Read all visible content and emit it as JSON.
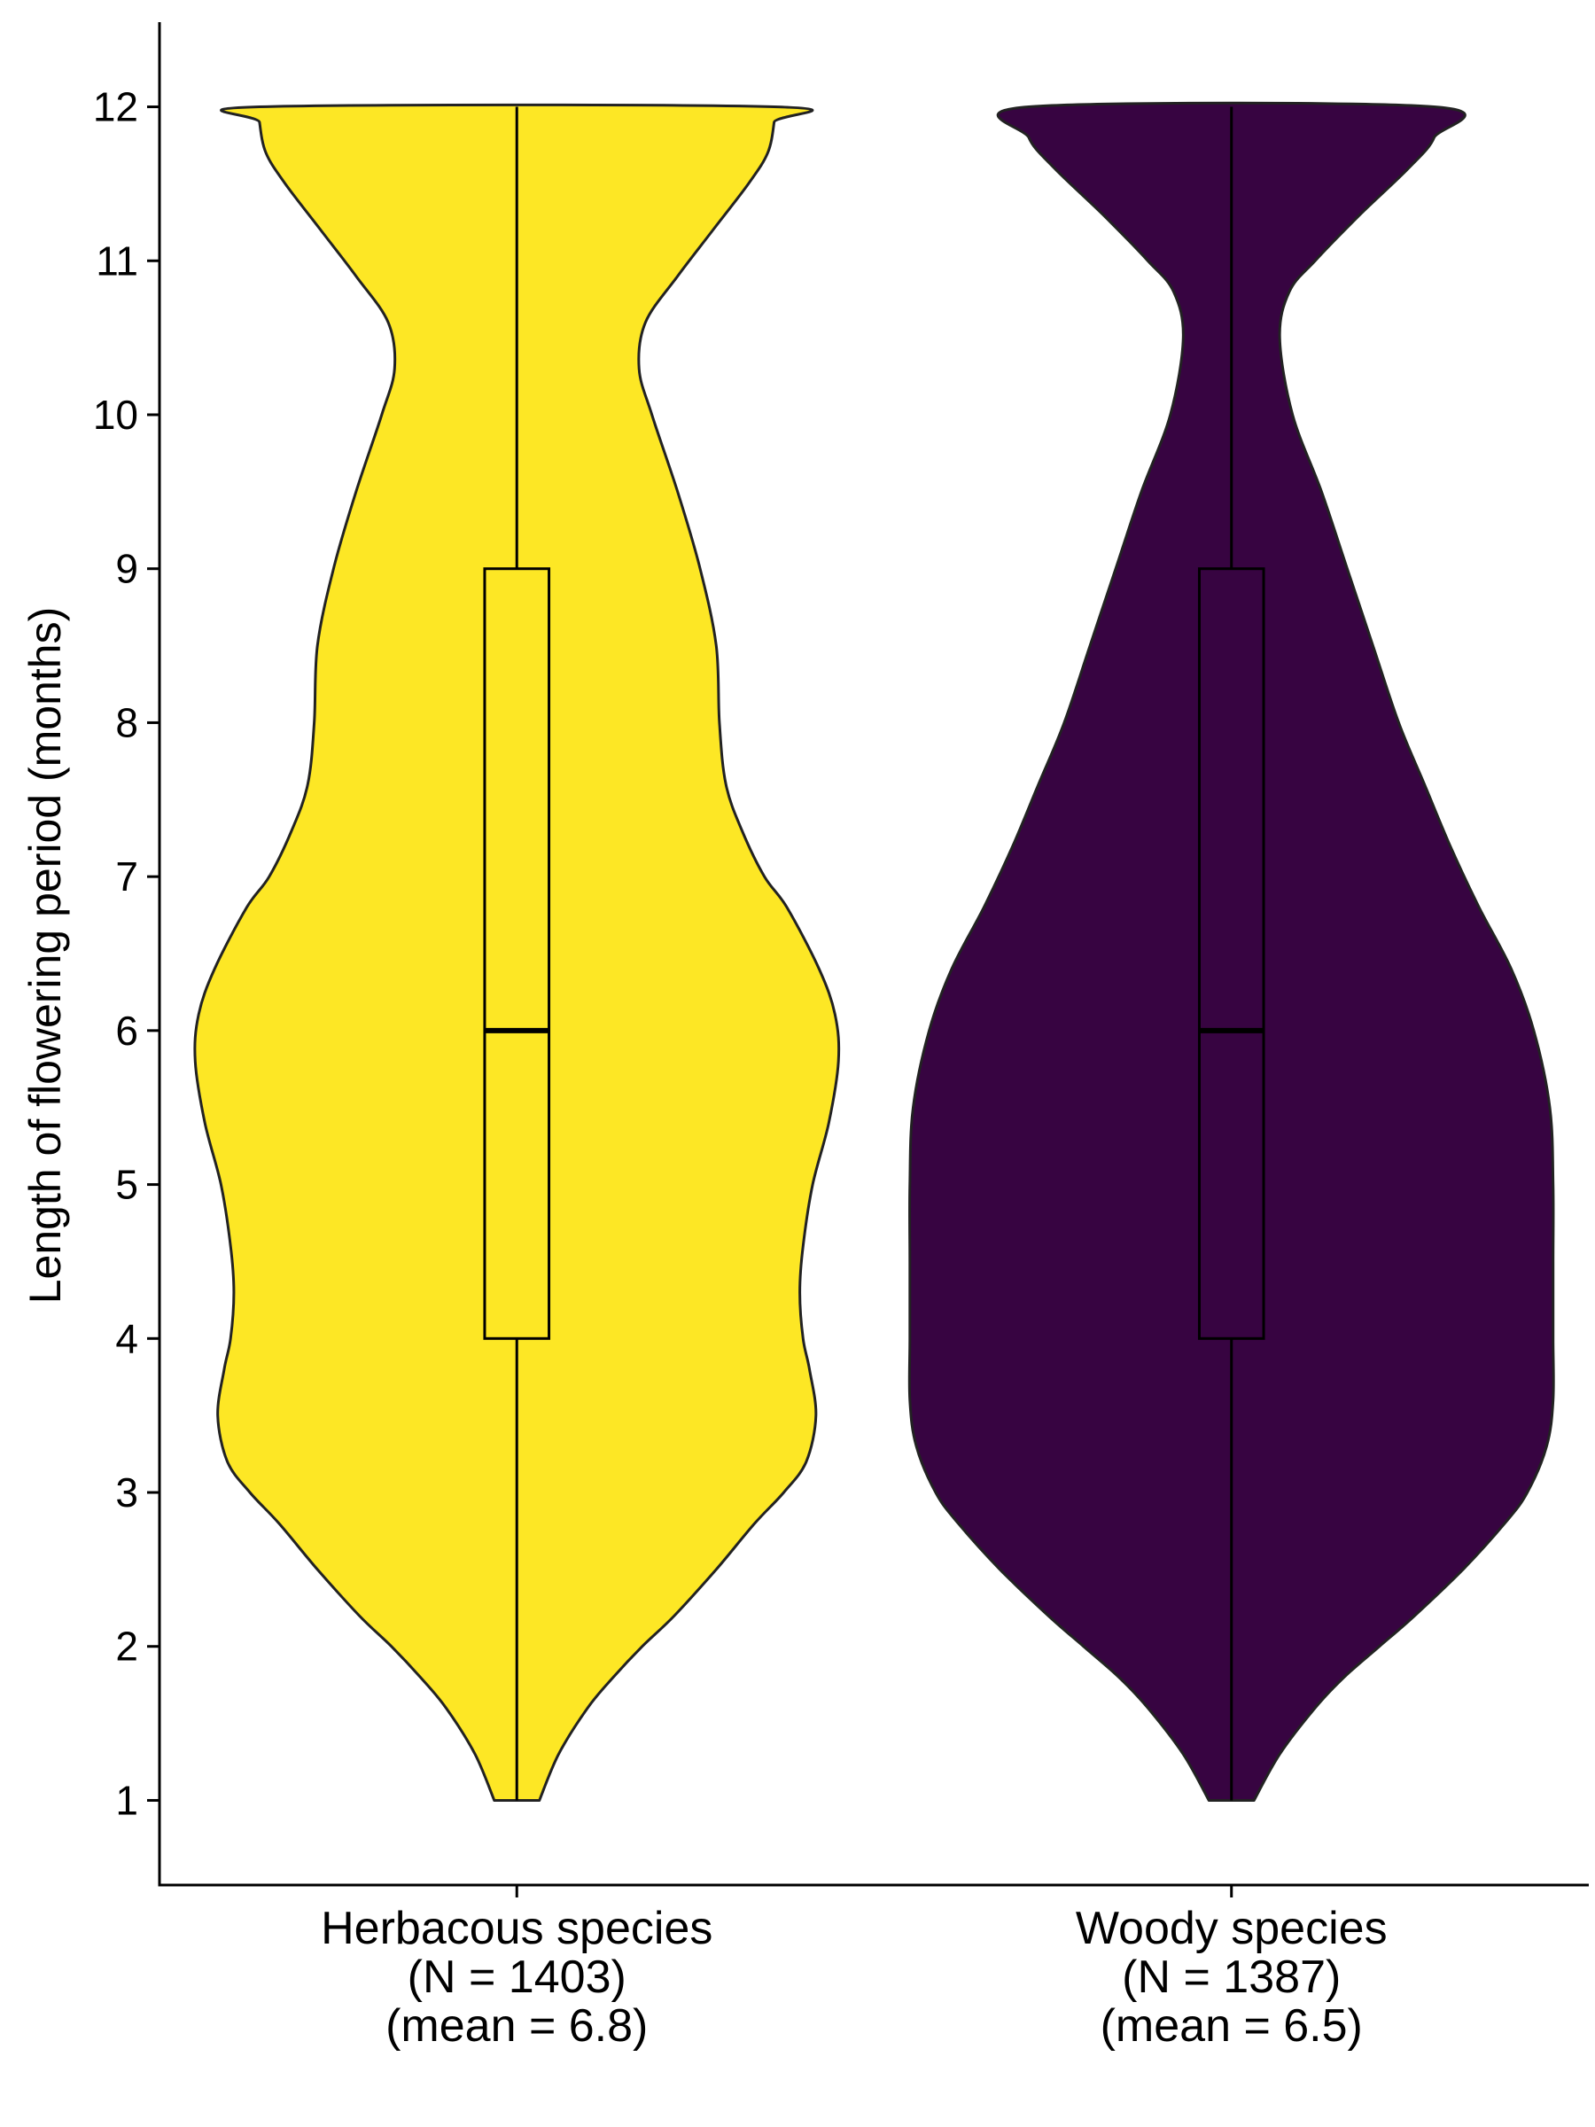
{
  "chart_data": {
    "type": "violin",
    "ylabel": "Length of flowering period (months)",
    "xlabel": "",
    "ylim": [
      0.45,
      12.55
    ],
    "y_ticks": [
      1,
      2,
      3,
      4,
      5,
      6,
      7,
      8,
      9,
      10,
      11,
      12
    ],
    "grid": false,
    "legend": "none",
    "categories": [
      {
        "label_lines": [
          "Herbacous species",
          "(N = 1403)",
          "(mean = 6.8)"
        ],
        "n": 1403,
        "mean": 6.8,
        "fill": "#FDE725",
        "box": {
          "min": 1,
          "q1": 4,
          "median": 6,
          "q3": 9,
          "max": 12
        },
        "density_profile": [
          [
            1.0,
            0.07
          ],
          [
            1.3,
            0.13
          ],
          [
            1.6,
            0.22
          ],
          [
            1.8,
            0.3
          ],
          [
            2.0,
            0.39
          ],
          [
            2.2,
            0.49
          ],
          [
            2.5,
            0.62
          ],
          [
            2.8,
            0.74
          ],
          [
            3.0,
            0.83
          ],
          [
            3.2,
            0.9
          ],
          [
            3.5,
            0.93
          ],
          [
            3.8,
            0.91
          ],
          [
            4.0,
            0.89
          ],
          [
            4.3,
            0.88
          ],
          [
            4.6,
            0.89
          ],
          [
            5.0,
            0.92
          ],
          [
            5.4,
            0.97
          ],
          [
            5.8,
            1.0
          ],
          [
            6.1,
            0.99
          ],
          [
            6.4,
            0.94
          ],
          [
            6.8,
            0.84
          ],
          [
            7.0,
            0.77
          ],
          [
            7.3,
            0.7
          ],
          [
            7.6,
            0.65
          ],
          [
            8.0,
            0.63
          ],
          [
            8.5,
            0.62
          ],
          [
            9.0,
            0.57
          ],
          [
            9.5,
            0.5
          ],
          [
            10.0,
            0.42
          ],
          [
            10.3,
            0.38
          ],
          [
            10.6,
            0.4
          ],
          [
            10.9,
            0.5
          ],
          [
            11.2,
            0.61
          ],
          [
            11.5,
            0.72
          ],
          [
            11.7,
            0.78
          ],
          [
            11.9,
            0.8
          ],
          [
            12.0,
            0.8
          ]
        ]
      },
      {
        "label_lines": [
          "Woody species",
          "(N = 1387)",
          "(mean = 6.5)"
        ],
        "n": 1387,
        "mean": 6.5,
        "fill": "#370441",
        "box": {
          "min": 1,
          "q1": 4,
          "median": 6,
          "q3": 9,
          "max": 12
        },
        "density_profile": [
          [
            1.0,
            0.07
          ],
          [
            1.3,
            0.15
          ],
          [
            1.6,
            0.26
          ],
          [
            1.8,
            0.35
          ],
          [
            2.0,
            0.46
          ],
          [
            2.2,
            0.57
          ],
          [
            2.5,
            0.72
          ],
          [
            2.8,
            0.85
          ],
          [
            3.0,
            0.92
          ],
          [
            3.3,
            0.98
          ],
          [
            3.6,
            1.0
          ],
          [
            4.0,
            1.0
          ],
          [
            4.5,
            1.0
          ],
          [
            5.0,
            1.0
          ],
          [
            5.5,
            0.99
          ],
          [
            6.0,
            0.94
          ],
          [
            6.4,
            0.87
          ],
          [
            6.8,
            0.77
          ],
          [
            7.2,
            0.68
          ],
          [
            7.6,
            0.6
          ],
          [
            8.0,
            0.52
          ],
          [
            8.5,
            0.44
          ],
          [
            9.0,
            0.36
          ],
          [
            9.5,
            0.28
          ],
          [
            10.0,
            0.19
          ],
          [
            10.5,
            0.15
          ],
          [
            10.8,
            0.18
          ],
          [
            11.0,
            0.26
          ],
          [
            11.3,
            0.4
          ],
          [
            11.6,
            0.55
          ],
          [
            11.8,
            0.63
          ],
          [
            12.0,
            0.63
          ]
        ]
      }
    ]
  }
}
